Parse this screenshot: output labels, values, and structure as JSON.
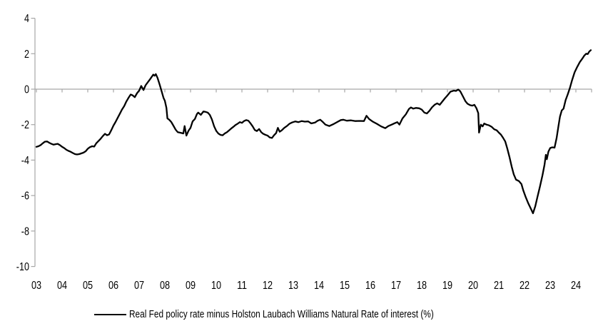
{
  "chart_data": {
    "type": "line",
    "title": "",
    "background_color": "#FFFFFF",
    "axis_color": "#A6A6A6",
    "text_color": "#000000",
    "grid": "zero-line-only",
    "legend_position": "bottom",
    "x_axis": {
      "range_years": [
        2003,
        2024.6
      ],
      "tick_years": [
        2003,
        2004,
        2005,
        2006,
        2007,
        2008,
        2009,
        2010,
        2011,
        2012,
        2013,
        2014,
        2015,
        2016,
        2017,
        2018,
        2019,
        2020,
        2021,
        2022,
        2023,
        2024
      ],
      "tick_labels": [
        "03",
        "04",
        "05",
        "06",
        "07",
        "08",
        "09",
        "10",
        "11",
        "12",
        "13",
        "14",
        "15",
        "16",
        "17",
        "18",
        "19",
        "20",
        "21",
        "22",
        "23",
        "24"
      ],
      "right_edge_tick": true
    },
    "y_axis": {
      "range": [
        -10,
        4
      ],
      "ticks": [
        4,
        2,
        0,
        -2,
        -4,
        -6,
        -8,
        -10
      ],
      "tick_labels": [
        "4",
        "2",
        "0",
        "-2",
        "-4",
        "-6",
        "-8",
        "-10"
      ]
    },
    "series": [
      {
        "name": "Real Fed policy rate minus Holston Laubach Williams Natural Rate of interest (%)",
        "color": "#000000",
        "line_width": 2.3,
        "points": [
          [
            2003.0,
            -3.25
          ],
          [
            2003.08,
            -3.22
          ],
          [
            2003.17,
            -3.15
          ],
          [
            2003.25,
            -3.05
          ],
          [
            2003.33,
            -2.96
          ],
          [
            2003.42,
            -2.95
          ],
          [
            2003.5,
            -3.02
          ],
          [
            2003.58,
            -3.08
          ],
          [
            2003.67,
            -3.13
          ],
          [
            2003.75,
            -3.1
          ],
          [
            2003.83,
            -3.08
          ],
          [
            2003.92,
            -3.16
          ],
          [
            2004.0,
            -3.25
          ],
          [
            2004.08,
            -3.32
          ],
          [
            2004.17,
            -3.42
          ],
          [
            2004.25,
            -3.48
          ],
          [
            2004.33,
            -3.53
          ],
          [
            2004.42,
            -3.6
          ],
          [
            2004.5,
            -3.66
          ],
          [
            2004.58,
            -3.68
          ],
          [
            2004.67,
            -3.66
          ],
          [
            2004.75,
            -3.62
          ],
          [
            2004.83,
            -3.58
          ],
          [
            2004.92,
            -3.5
          ],
          [
            2005.0,
            -3.36
          ],
          [
            2005.08,
            -3.27
          ],
          [
            2005.17,
            -3.22
          ],
          [
            2005.25,
            -3.24
          ],
          [
            2005.33,
            -3.05
          ],
          [
            2005.42,
            -2.92
          ],
          [
            2005.5,
            -2.8
          ],
          [
            2005.58,
            -2.65
          ],
          [
            2005.67,
            -2.52
          ],
          [
            2005.75,
            -2.6
          ],
          [
            2005.83,
            -2.55
          ],
          [
            2005.92,
            -2.3
          ],
          [
            2006.0,
            -2.05
          ],
          [
            2006.08,
            -1.85
          ],
          [
            2006.17,
            -1.6
          ],
          [
            2006.25,
            -1.38
          ],
          [
            2006.33,
            -1.15
          ],
          [
            2006.42,
            -0.95
          ],
          [
            2006.5,
            -0.7
          ],
          [
            2006.58,
            -0.5
          ],
          [
            2006.67,
            -0.3
          ],
          [
            2006.75,
            -0.35
          ],
          [
            2006.83,
            -0.45
          ],
          [
            2006.92,
            -0.22
          ],
          [
            2007.0,
            -0.08
          ],
          [
            2007.08,
            0.18
          ],
          [
            2007.17,
            -0.05
          ],
          [
            2007.25,
            0.22
          ],
          [
            2007.33,
            0.38
          ],
          [
            2007.42,
            0.55
          ],
          [
            2007.5,
            0.72
          ],
          [
            2007.55,
            0.82
          ],
          [
            2007.6,
            0.76
          ],
          [
            2007.65,
            0.85
          ],
          [
            2007.72,
            0.62
          ],
          [
            2007.8,
            0.25
          ],
          [
            2007.88,
            -0.15
          ],
          [
            2007.95,
            -0.5
          ],
          [
            2008.0,
            -0.65
          ],
          [
            2008.06,
            -1.05
          ],
          [
            2008.1,
            -1.65
          ],
          [
            2008.17,
            -1.72
          ],
          [
            2008.25,
            -1.85
          ],
          [
            2008.33,
            -2.05
          ],
          [
            2008.42,
            -2.28
          ],
          [
            2008.5,
            -2.42
          ],
          [
            2008.58,
            -2.45
          ],
          [
            2008.67,
            -2.48
          ],
          [
            2008.72,
            -2.5
          ],
          [
            2008.77,
            -2.08
          ],
          [
            2008.84,
            -2.62
          ],
          [
            2008.92,
            -2.35
          ],
          [
            2009.0,
            -2.18
          ],
          [
            2009.08,
            -1.82
          ],
          [
            2009.17,
            -1.68
          ],
          [
            2009.25,
            -1.4
          ],
          [
            2009.3,
            -1.32
          ],
          [
            2009.4,
            -1.45
          ],
          [
            2009.5,
            -1.26
          ],
          [
            2009.58,
            -1.28
          ],
          [
            2009.67,
            -1.32
          ],
          [
            2009.75,
            -1.45
          ],
          [
            2009.83,
            -1.7
          ],
          [
            2009.92,
            -2.1
          ],
          [
            2010.0,
            -2.35
          ],
          [
            2010.08,
            -2.5
          ],
          [
            2010.17,
            -2.58
          ],
          [
            2010.25,
            -2.6
          ],
          [
            2010.33,
            -2.5
          ],
          [
            2010.42,
            -2.42
          ],
          [
            2010.5,
            -2.32
          ],
          [
            2010.58,
            -2.22
          ],
          [
            2010.67,
            -2.12
          ],
          [
            2010.75,
            -2.02
          ],
          [
            2010.83,
            -1.95
          ],
          [
            2010.92,
            -1.86
          ],
          [
            2011.0,
            -1.9
          ],
          [
            2011.08,
            -1.8
          ],
          [
            2011.17,
            -1.74
          ],
          [
            2011.25,
            -1.78
          ],
          [
            2011.33,
            -1.92
          ],
          [
            2011.42,
            -2.1
          ],
          [
            2011.5,
            -2.3
          ],
          [
            2011.58,
            -2.36
          ],
          [
            2011.67,
            -2.25
          ],
          [
            2011.75,
            -2.42
          ],
          [
            2011.83,
            -2.52
          ],
          [
            2011.92,
            -2.58
          ],
          [
            2012.0,
            -2.62
          ],
          [
            2012.08,
            -2.72
          ],
          [
            2012.17,
            -2.75
          ],
          [
            2012.25,
            -2.6
          ],
          [
            2012.33,
            -2.48
          ],
          [
            2012.4,
            -2.18
          ],
          [
            2012.47,
            -2.4
          ],
          [
            2012.55,
            -2.32
          ],
          [
            2012.65,
            -2.18
          ],
          [
            2012.75,
            -2.08
          ],
          [
            2012.85,
            -1.95
          ],
          [
            2012.95,
            -1.88
          ],
          [
            2013.08,
            -1.82
          ],
          [
            2013.2,
            -1.86
          ],
          [
            2013.33,
            -1.8
          ],
          [
            2013.45,
            -1.83
          ],
          [
            2013.58,
            -1.82
          ],
          [
            2013.7,
            -1.93
          ],
          [
            2013.85,
            -1.88
          ],
          [
            2013.95,
            -1.78
          ],
          [
            2014.05,
            -1.72
          ],
          [
            2014.15,
            -1.85
          ],
          [
            2014.25,
            -2.0
          ],
          [
            2014.4,
            -2.08
          ],
          [
            2014.55,
            -1.98
          ],
          [
            2014.7,
            -1.86
          ],
          [
            2014.85,
            -1.74
          ],
          [
            2014.95,
            -1.72
          ],
          [
            2015.08,
            -1.78
          ],
          [
            2015.25,
            -1.76
          ],
          [
            2015.42,
            -1.8
          ],
          [
            2015.58,
            -1.79
          ],
          [
            2015.75,
            -1.8
          ],
          [
            2015.85,
            -1.5
          ],
          [
            2015.95,
            -1.68
          ],
          [
            2016.08,
            -1.82
          ],
          [
            2016.25,
            -1.95
          ],
          [
            2016.42,
            -2.1
          ],
          [
            2016.58,
            -2.2
          ],
          [
            2016.7,
            -2.08
          ],
          [
            2016.83,
            -2.0
          ],
          [
            2016.95,
            -1.92
          ],
          [
            2017.05,
            -1.86
          ],
          [
            2017.13,
            -2.0
          ],
          [
            2017.25,
            -1.65
          ],
          [
            2017.38,
            -1.42
          ],
          [
            2017.5,
            -1.12
          ],
          [
            2017.58,
            -1.03
          ],
          [
            2017.67,
            -1.1
          ],
          [
            2017.78,
            -1.06
          ],
          [
            2017.9,
            -1.08
          ],
          [
            2018.0,
            -1.15
          ],
          [
            2018.1,
            -1.32
          ],
          [
            2018.2,
            -1.37
          ],
          [
            2018.3,
            -1.22
          ],
          [
            2018.4,
            -1.02
          ],
          [
            2018.5,
            -0.88
          ],
          [
            2018.6,
            -0.8
          ],
          [
            2018.7,
            -0.88
          ],
          [
            2018.8,
            -0.7
          ],
          [
            2018.9,
            -0.52
          ],
          [
            2019.0,
            -0.35
          ],
          [
            2019.12,
            -0.14
          ],
          [
            2019.25,
            -0.08
          ],
          [
            2019.33,
            -0.1
          ],
          [
            2019.42,
            -0.02
          ],
          [
            2019.5,
            -0.12
          ],
          [
            2019.6,
            -0.4
          ],
          [
            2019.7,
            -0.68
          ],
          [
            2019.78,
            -0.82
          ],
          [
            2019.88,
            -0.9
          ],
          [
            2019.97,
            -0.93
          ],
          [
            2020.05,
            -0.88
          ],
          [
            2020.13,
            -1.08
          ],
          [
            2020.2,
            -1.35
          ],
          [
            2020.23,
            -2.45
          ],
          [
            2020.3,
            -2.0
          ],
          [
            2020.37,
            -2.1
          ],
          [
            2020.43,
            -1.94
          ],
          [
            2020.52,
            -2.0
          ],
          [
            2020.62,
            -2.04
          ],
          [
            2020.72,
            -2.12
          ],
          [
            2020.82,
            -2.26
          ],
          [
            2020.92,
            -2.32
          ],
          [
            2021.0,
            -2.45
          ],
          [
            2021.08,
            -2.56
          ],
          [
            2021.17,
            -2.75
          ],
          [
            2021.25,
            -2.95
          ],
          [
            2021.33,
            -3.35
          ],
          [
            2021.42,
            -3.85
          ],
          [
            2021.5,
            -4.36
          ],
          [
            2021.58,
            -4.8
          ],
          [
            2021.67,
            -5.1
          ],
          [
            2021.78,
            -5.18
          ],
          [
            2021.88,
            -5.35
          ],
          [
            2021.95,
            -5.7
          ],
          [
            2022.05,
            -6.1
          ],
          [
            2022.15,
            -6.45
          ],
          [
            2022.25,
            -6.75
          ],
          [
            2022.33,
            -7.0
          ],
          [
            2022.42,
            -6.6
          ],
          [
            2022.5,
            -6.1
          ],
          [
            2022.6,
            -5.5
          ],
          [
            2022.7,
            -4.85
          ],
          [
            2022.78,
            -4.25
          ],
          [
            2022.83,
            -3.7
          ],
          [
            2022.87,
            -3.95
          ],
          [
            2022.93,
            -3.52
          ],
          [
            2023.0,
            -3.32
          ],
          [
            2023.08,
            -3.28
          ],
          [
            2023.17,
            -3.3
          ],
          [
            2023.25,
            -2.75
          ],
          [
            2023.32,
            -2.1
          ],
          [
            2023.38,
            -1.55
          ],
          [
            2023.45,
            -1.2
          ],
          [
            2023.52,
            -1.1
          ],
          [
            2023.6,
            -0.62
          ],
          [
            2023.68,
            -0.3
          ],
          [
            2023.77,
            0.08
          ],
          [
            2023.85,
            0.5
          ],
          [
            2023.95,
            0.95
          ],
          [
            2024.05,
            1.25
          ],
          [
            2024.15,
            1.52
          ],
          [
            2024.25,
            1.72
          ],
          [
            2024.33,
            1.9
          ],
          [
            2024.4,
            2.0
          ],
          [
            2024.46,
            1.98
          ],
          [
            2024.52,
            2.12
          ],
          [
            2024.58,
            2.2
          ]
        ]
      }
    ]
  },
  "legend": {
    "label": "Real Fed policy rate minus Holston Laubach Williams Natural Rate of interest (%)"
  }
}
